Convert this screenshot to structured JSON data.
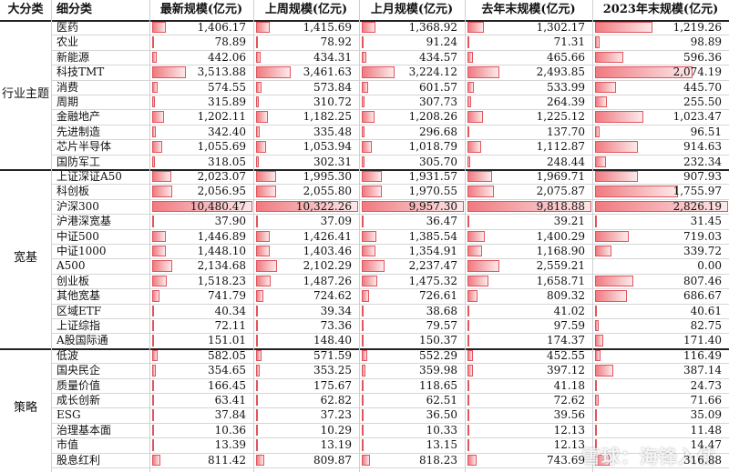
{
  "headers": {
    "category": "大分类",
    "subcategory": "细分类",
    "latest": "最新规模(亿元)",
    "last_week": "上周规模(亿元)",
    "last_month": "上月规模(亿元)",
    "last_year_end": "去年末规模(亿元)",
    "y2023_end": "2023年末规模(亿元)"
  },
  "groups": [
    {
      "name": "行业主题",
      "rows": [
        {
          "name": "医药",
          "values": [
            "1,406.17",
            "1,415.69",
            "1,368.92",
            "1,302.17",
            "1,219.26"
          ]
        },
        {
          "name": "农业",
          "values": [
            "78.89",
            "78.92",
            "91.24",
            "71.31",
            "98.89"
          ]
        },
        {
          "name": "新能源",
          "values": [
            "442.06",
            "434.31",
            "434.57",
            "465.66",
            "596.36"
          ]
        },
        {
          "name": "科技TMT",
          "values": [
            "3,513.88",
            "3,461.63",
            "3,224.12",
            "2,493.85",
            "2,074.19"
          ]
        },
        {
          "name": "消费",
          "values": [
            "574.55",
            "573.84",
            "601.57",
            "533.99",
            "445.70"
          ]
        },
        {
          "name": "周期",
          "values": [
            "315.89",
            "310.72",
            "307.73",
            "264.39",
            "255.50"
          ]
        },
        {
          "name": "金融地产",
          "values": [
            "1,202.11",
            "1,182.25",
            "1,208.26",
            "1,225.12",
            "1,023.47"
          ]
        },
        {
          "name": "先进制造",
          "values": [
            "342.40",
            "335.48",
            "296.68",
            "137.70",
            "96.51"
          ]
        },
        {
          "name": "芯片半导体",
          "values": [
            "1,055.69",
            "1,053.94",
            "1,018.79",
            "1,112.87",
            "914.63"
          ]
        },
        {
          "name": "国防军工",
          "values": [
            "318.05",
            "302.31",
            "305.70",
            "248.44",
            "232.34"
          ]
        }
      ]
    },
    {
      "name": "宽基",
      "rows": [
        {
          "name": "上证深证A50",
          "values": [
            "2,023.07",
            "1,995.30",
            "1,931.57",
            "1,969.71",
            "907.93"
          ]
        },
        {
          "name": "科创板",
          "values": [
            "2,056.95",
            "2,055.80",
            "1,970.55",
            "2,075.87",
            "1,755.97"
          ]
        },
        {
          "name": "沪深300",
          "values": [
            "10,480.47",
            "10,322.26",
            "9,957.30",
            "9,818.88",
            "2,826.19"
          ]
        },
        {
          "name": "沪港深宽基",
          "values": [
            "37.90",
            "37.09",
            "36.47",
            "39.21",
            "31.45"
          ]
        },
        {
          "name": "中证500",
          "values": [
            "1,446.89",
            "1,426.41",
            "1,385.54",
            "1,400.29",
            "719.03"
          ]
        },
        {
          "name": "中证1000",
          "values": [
            "1,448.10",
            "1,403.46",
            "1,354.91",
            "1,168.90",
            "339.72"
          ]
        },
        {
          "name": "A500",
          "values": [
            "2,134.68",
            "2,102.29",
            "2,237.47",
            "2,559.21",
            "0.00"
          ]
        },
        {
          "name": "创业板",
          "values": [
            "1,518.23",
            "1,487.26",
            "1,475.32",
            "1,658.71",
            "807.46"
          ]
        },
        {
          "name": "其他宽基",
          "values": [
            "741.79",
            "724.62",
            "726.61",
            "809.32",
            "686.67"
          ]
        },
        {
          "name": "区域ETF",
          "values": [
            "40.34",
            "39.34",
            "38.68",
            "41.02",
            "40.61"
          ]
        },
        {
          "name": "上证综指",
          "values": [
            "72.11",
            "73.36",
            "79.57",
            "97.59",
            "82.75"
          ]
        },
        {
          "name": "A股国际通",
          "values": [
            "151.01",
            "148.40",
            "150.37",
            "174.37",
            "171.40"
          ]
        }
      ]
    },
    {
      "name": "策略",
      "rows": [
        {
          "name": "低波",
          "values": [
            "582.05",
            "571.59",
            "552.29",
            "452.55",
            "116.49"
          ]
        },
        {
          "name": "国央民企",
          "values": [
            "354.65",
            "353.25",
            "359.98",
            "397.12",
            "387.14"
          ]
        },
        {
          "name": "质量价值",
          "values": [
            "166.45",
            "175.67",
            "118.65",
            "41.18",
            "24.73"
          ]
        },
        {
          "name": "成长创新",
          "values": [
            "63.41",
            "62.82",
            "62.51",
            "72.62",
            "71.66"
          ]
        },
        {
          "name": "ESG",
          "values": [
            "37.84",
            "37.23",
            "36.50",
            "39.56",
            "35.09"
          ]
        },
        {
          "name": "治理基本面",
          "values": [
            "10.36",
            "10.29",
            "10.33",
            "12.13",
            "11.48"
          ]
        },
        {
          "name": "市值",
          "values": [
            "13.39",
            "13.19",
            "13.15",
            "12.13",
            "14.47"
          ]
        },
        {
          "name": "股息红利",
          "values": [
            "811.42",
            "809.87",
            "818.23",
            "743.69",
            "316.88"
          ]
        }
      ]
    }
  ],
  "bar_color": "#f07a80",
  "bar_border_color": "#e0555e",
  "watermark": "雪球：海锋入住"
}
